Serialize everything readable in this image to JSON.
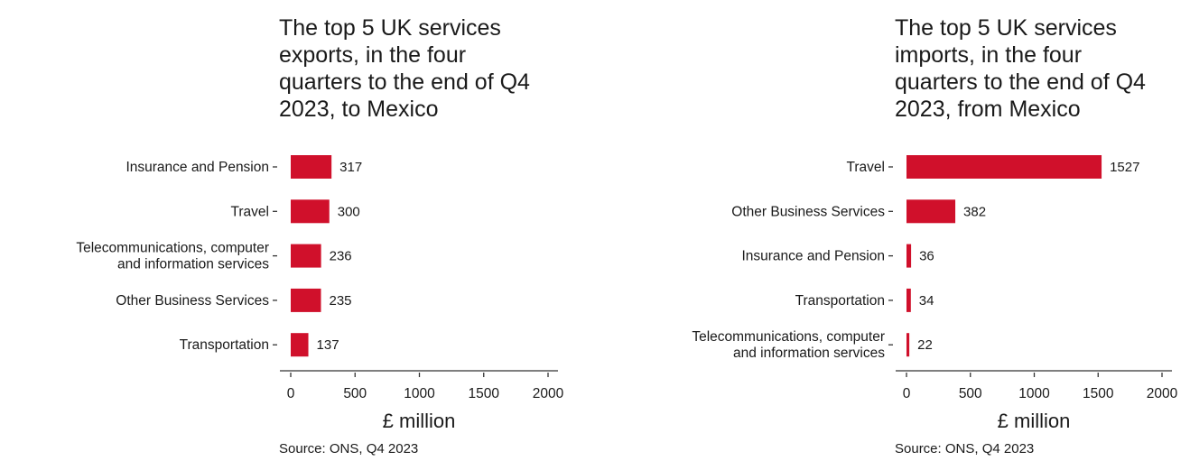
{
  "chart_data": [
    {
      "type": "bar",
      "orientation": "horizontal",
      "title": "The top 5 UK services exports, in the four quarters to the end of Q4 2023, to Mexico",
      "title_lines": [
        "The top 5 UK services",
        "exports, in the four",
        "quarters to the end of Q4",
        "2023, to Mexico"
      ],
      "categories": [
        [
          "Insurance and Pension"
        ],
        [
          "Travel"
        ],
        [
          "Telecommunications, computer",
          "and information services"
        ],
        [
          "Other Business Services"
        ],
        [
          "Transportation"
        ]
      ],
      "values": [
        317,
        300,
        236,
        235,
        137
      ],
      "value_labels": [
        "317",
        "300",
        "236",
        "235",
        "137"
      ],
      "xlabel": "£ million",
      "xlim": [
        0,
        2000
      ],
      "x_ticks": [
        0,
        500,
        1000,
        1500,
        2000
      ],
      "x_tick_labels": [
        "0",
        "500",
        "1000",
        "1500",
        "2000"
      ],
      "grid": false,
      "bar_color": "#d0102b",
      "source": "Source: ONS, Q4 2023"
    },
    {
      "type": "bar",
      "orientation": "horizontal",
      "title": "The top 5 UK services imports, in the four quarters to the end of Q4 2023, from Mexico",
      "title_lines": [
        "The top 5 UK services",
        "imports, in the four",
        "quarters to the end of Q4",
        "2023, from Mexico"
      ],
      "categories": [
        [
          "Travel"
        ],
        [
          "Other Business Services"
        ],
        [
          "Insurance and Pension"
        ],
        [
          "Transportation"
        ],
        [
          "Telecommunications, computer",
          "and information services"
        ]
      ],
      "values": [
        1527,
        382,
        36,
        34,
        22
      ],
      "value_labels": [
        "1527",
        "382",
        "36",
        "34",
        "22"
      ],
      "xlabel": "£ million",
      "xlim": [
        0,
        2000
      ],
      "x_ticks": [
        0,
        500,
        1000,
        1500,
        2000
      ],
      "x_tick_labels": [
        "0",
        "500",
        "1000",
        "1500",
        "2000"
      ],
      "grid": false,
      "bar_color": "#d0102b",
      "source": "Source: ONS, Q4 2023"
    }
  ]
}
